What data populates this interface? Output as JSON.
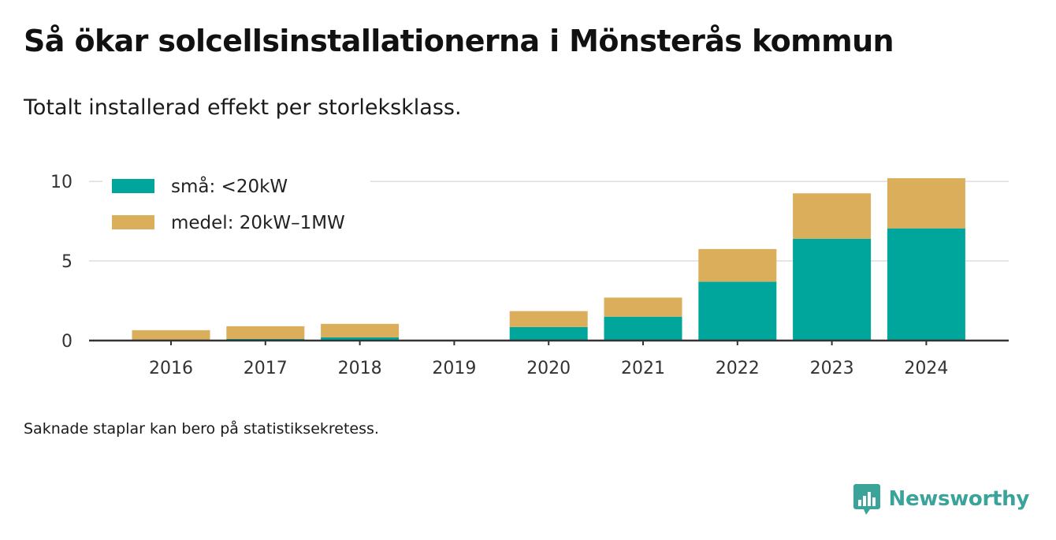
{
  "title": "Så ökar solcellsinstallationerna i Mönsterås kommun",
  "subtitle": "Totalt installerad effekt per storleksklass.",
  "note": "Saknade staplar kan bero på statistiksekretess.",
  "brand": "Newsworthy",
  "colors": {
    "small": "#00a69c",
    "medium": "#dbae5c",
    "grid": "#dddddd",
    "axis": "#333333",
    "brand": "#3aa39a"
  },
  "chart_data": {
    "type": "bar",
    "stacked": true,
    "categories": [
      "2016",
      "2017",
      "2018",
      "2019",
      "2020",
      "2021",
      "2022",
      "2023",
      "2024"
    ],
    "series": [
      {
        "name": "små: <20kW",
        "color": "#00a69c",
        "values": [
          0.05,
          0.1,
          0.2,
          null,
          0.85,
          1.5,
          3.7,
          6.4,
          7.05
        ]
      },
      {
        "name": "medel: 20kW–1MW",
        "color": "#dbae5c",
        "values": [
          0.6,
          0.8,
          0.85,
          null,
          1.0,
          1.2,
          2.05,
          2.85,
          3.15
        ]
      }
    ],
    "ylim": [
      0,
      10.5
    ],
    "yticks": [
      "0",
      "5",
      "10"
    ],
    "ytick_values": [
      0,
      5,
      10
    ],
    "grid": true,
    "legend_position": "top-left",
    "xlabel": "",
    "ylabel": ""
  }
}
